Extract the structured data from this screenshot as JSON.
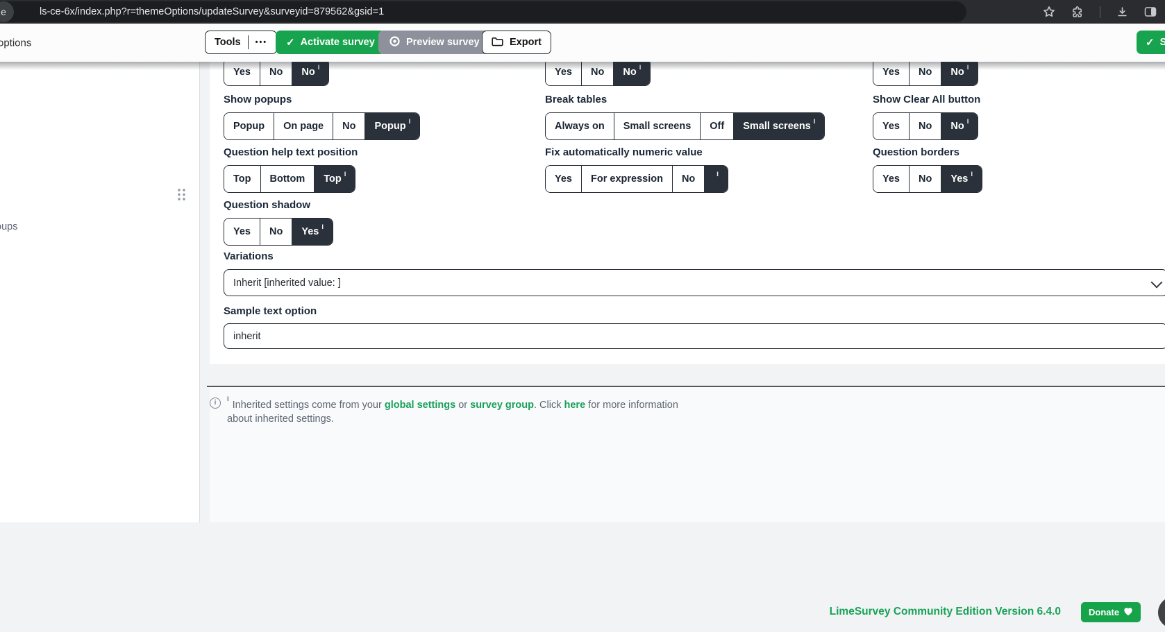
{
  "browser": {
    "url": "ls-ce-6x/index.php?r=themeOptions/updateSurvey&surveyid=879562&gsid=1",
    "favicon_letter": "e",
    "icons": [
      "bookmark-star",
      "extensions",
      "download",
      "side-panel"
    ]
  },
  "toolbar": {
    "page_title": "options",
    "tools": "Tools",
    "tools_more": "•••",
    "activate": "Activate survey",
    "preview": "Preview survey",
    "export": "Export",
    "save": "S"
  },
  "sidebar": {
    "truncated_item": "oups"
  },
  "form": {
    "inherited_marker": "I",
    "fields": [
      {
        "col": 1,
        "row": 0,
        "label": "",
        "options": [
          "Yes",
          "No",
          {
            "text": "No",
            "selected": true,
            "inherited": true
          }
        ]
      },
      {
        "col": 2,
        "row": 0,
        "label": "",
        "options": [
          "Yes",
          "No",
          {
            "text": "No",
            "selected": true,
            "inherited": true
          }
        ]
      },
      {
        "col": 3,
        "row": 0,
        "label": "",
        "options": [
          "Yes",
          "No",
          {
            "text": "No",
            "selected": true,
            "inherited": true
          }
        ]
      },
      {
        "col": 1,
        "row": 1,
        "label": "Show popups",
        "options": [
          "Popup",
          "On page",
          "No",
          {
            "text": "Popup",
            "selected": true,
            "inherited": true
          }
        ]
      },
      {
        "col": 2,
        "row": 1,
        "label": "Break tables",
        "options": [
          "Always on",
          "Small screens",
          "Off",
          {
            "text": "Small screens",
            "selected": true,
            "inherited": true
          }
        ]
      },
      {
        "col": 3,
        "row": 1,
        "label": "Show Clear All button",
        "options": [
          "Yes",
          "No",
          {
            "text": "No",
            "selected": true,
            "inherited": true
          }
        ]
      },
      {
        "col": 1,
        "row": 2,
        "label": "Question help text position",
        "options": [
          "Top",
          "Bottom",
          {
            "text": "Top",
            "selected": true,
            "inherited": true
          }
        ]
      },
      {
        "col": 2,
        "row": 2,
        "label": "Fix automatically numeric value",
        "options": [
          "Yes",
          "For expression",
          "No",
          {
            "text": "",
            "selected": true,
            "inherited": true
          }
        ]
      },
      {
        "col": 3,
        "row": 2,
        "label": "Question borders",
        "options": [
          "Yes",
          "No",
          {
            "text": "Yes",
            "selected": true,
            "inherited": true
          }
        ]
      },
      {
        "col": 1,
        "row": 3,
        "label": "Question shadow",
        "options": [
          "Yes",
          "No",
          {
            "text": "Yes",
            "selected": true,
            "inherited": true
          }
        ]
      }
    ],
    "variations": {
      "label": "Variations",
      "value": "Inherit [inherited value: ]"
    },
    "sample_text": {
      "label": "Sample text option",
      "value": "inherit"
    }
  },
  "footnote": {
    "marker": "I",
    "segments": [
      {
        "text": "Inherited settings come from your "
      },
      {
        "text": "global settings",
        "link": true
      },
      {
        "text": " or "
      },
      {
        "text": "survey group",
        "link": true
      },
      {
        "text": ". Click "
      },
      {
        "text": "here",
        "link": true
      },
      {
        "text": " for more information about inherited settings."
      }
    ]
  },
  "page_footer": {
    "version": "LimeSurvey Community Edition Version 6.4.0",
    "donate": "Donate"
  },
  "colors": {
    "green": "#18a44e",
    "link_green": "#17a05a",
    "dark_selected": "#2a313a",
    "preview_gray": "#8e919c"
  }
}
